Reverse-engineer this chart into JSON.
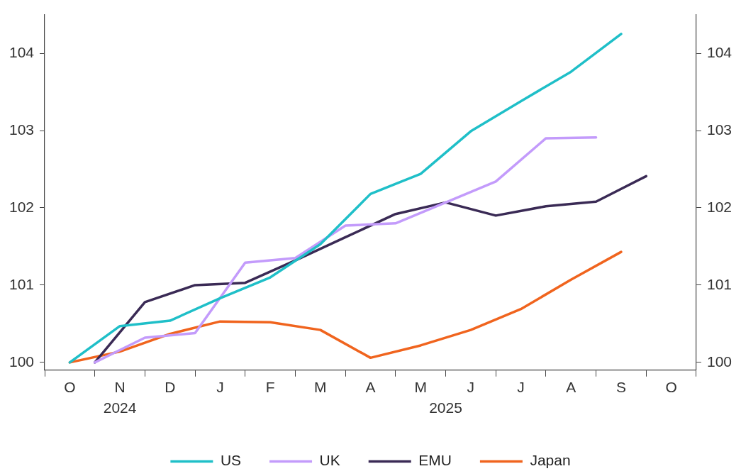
{
  "chart_data": {
    "type": "line",
    "categories": [
      null,
      "O",
      null,
      "N",
      null,
      "D",
      null,
      "J",
      null,
      "F",
      null,
      "M",
      null,
      "A",
      null,
      "M",
      null,
      "J",
      null,
      "J",
      null,
      "A",
      null,
      "S",
      null,
      "O",
      null
    ],
    "series": [
      {
        "name": "US",
        "color": "#1fbfc8",
        "values": [
          null,
          100.0,
          null,
          100.47,
          null,
          100.54,
          null,
          100.83,
          null,
          101.1,
          null,
          101.53,
          null,
          102.18,
          null,
          102.44,
          null,
          102.99,
          null,
          103.38,
          null,
          103.76,
          null,
          104.25,
          null,
          null,
          null
        ]
      },
      {
        "name": "UK",
        "color": "#c39bfb",
        "values": [
          null,
          null,
          100.0,
          null,
          100.32,
          null,
          100.38,
          null,
          101.29,
          null,
          101.35,
          null,
          101.77,
          null,
          101.8,
          null,
          102.07,
          null,
          102.34,
          null,
          102.9,
          null,
          102.91,
          null,
          null,
          null,
          null
        ]
      },
      {
        "name": "EMU",
        "color": "#3a2a55",
        "values": [
          null,
          null,
          100.0,
          null,
          100.78,
          null,
          101.0,
          null,
          101.03,
          null,
          101.32,
          null,
          101.62,
          null,
          101.92,
          null,
          102.07,
          null,
          101.9,
          null,
          102.02,
          null,
          102.08,
          null,
          102.41,
          null,
          null
        ]
      },
      {
        "name": "Japan",
        "color": "#f0641e",
        "values": [
          null,
          100.0,
          null,
          100.14,
          null,
          100.37,
          null,
          100.53,
          null,
          100.52,
          null,
          100.42,
          null,
          100.06,
          null,
          100.22,
          null,
          100.42,
          null,
          100.69,
          null,
          101.07,
          null,
          101.43,
          null,
          null,
          null
        ]
      }
    ],
    "annotations": [
      "2024",
      "2025"
    ],
    "ylim": [
      99.9,
      104.5
    ],
    "yticks": [
      100,
      101,
      102,
      103,
      104
    ],
    "y2lim": [
      99.9,
      104.5
    ],
    "y2ticks": [
      100,
      101,
      102,
      103,
      104
    ],
    "grid": false,
    "legend": "bottom",
    "marker": "none",
    "line_style": "solid"
  }
}
